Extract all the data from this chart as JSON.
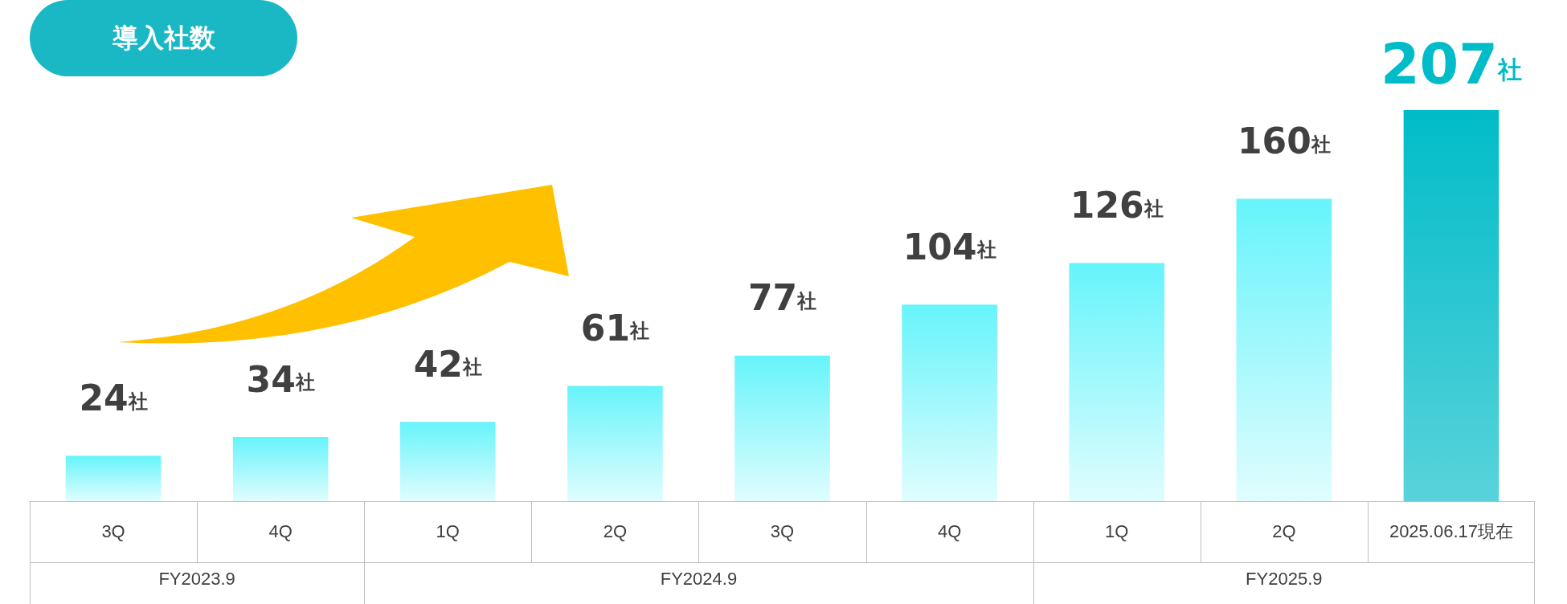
{
  "chart_data": {
    "type": "bar",
    "title": "導入社数",
    "categories": [
      "3Q",
      "4Q",
      "1Q",
      "2Q",
      "3Q",
      "4Q",
      "1Q",
      "2Q",
      "2025.06.17現在"
    ],
    "values": [
      24,
      34,
      42,
      61,
      77,
      104,
      126,
      160,
      207
    ],
    "value_labels": [
      "24社",
      "34社",
      "42社",
      "61社",
      "77社",
      "104社",
      "126社",
      "160社",
      "207社"
    ],
    "colors": [
      "#66f4fb",
      "#66f4fb",
      "#66f4fb",
      "#66f4fb",
      "#66f4fb",
      "#66f4fb",
      "#66f4fb",
      "#66f4fb",
      "#00bcc8"
    ],
    "annotations": [
      "FY2023.9",
      "FY2024.9",
      "FY2025.9"
    ]
  }
}
